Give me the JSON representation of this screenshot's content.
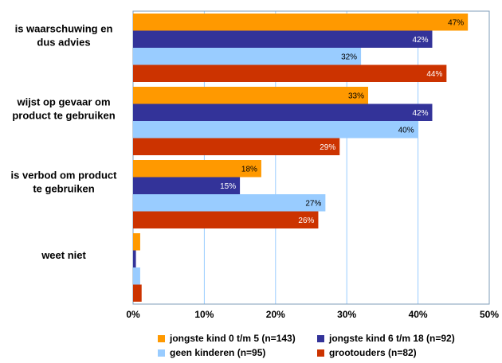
{
  "chart_data": {
    "type": "bar",
    "orientation": "horizontal",
    "categories": [
      [
        "is waarschuwing en",
        "dus advies"
      ],
      [
        "wijst op gevaar om",
        "product te gebruiken"
      ],
      [
        "is verbod om product",
        "te gebruiken"
      ],
      [
        "weet niet"
      ]
    ],
    "series": [
      {
        "name": "jongste kind 0 t/m 5 (n=143)",
        "color": "#ff9900",
        "values": [
          47,
          33,
          18,
          1
        ],
        "labels": [
          "47%",
          "33%",
          "18%",
          ""
        ]
      },
      {
        "name": "jongste kind 6 t/m 18 (n=92)",
        "color": "#333399",
        "values": [
          42,
          42,
          15,
          0.4
        ],
        "labels": [
          "42%",
          "42%",
          "15%",
          ""
        ]
      },
      {
        "name": "geen kinderen (n=95)",
        "color": "#99ccff",
        "values": [
          32,
          40,
          27,
          1
        ],
        "labels": [
          "32%",
          "40%",
          "27%",
          ""
        ]
      },
      {
        "name": "grootouders (n=82)",
        "color": "#cc3300",
        "values": [
          44,
          29,
          26,
          1.2
        ],
        "labels": [
          "44%",
          "29%",
          "26%",
          ""
        ]
      }
    ],
    "xlim": [
      0,
      50
    ],
    "xticks": [
      "0%",
      "10%",
      "20%",
      "30%",
      "40%",
      "50%"
    ],
    "grid": true,
    "legend_position": "bottom"
  }
}
